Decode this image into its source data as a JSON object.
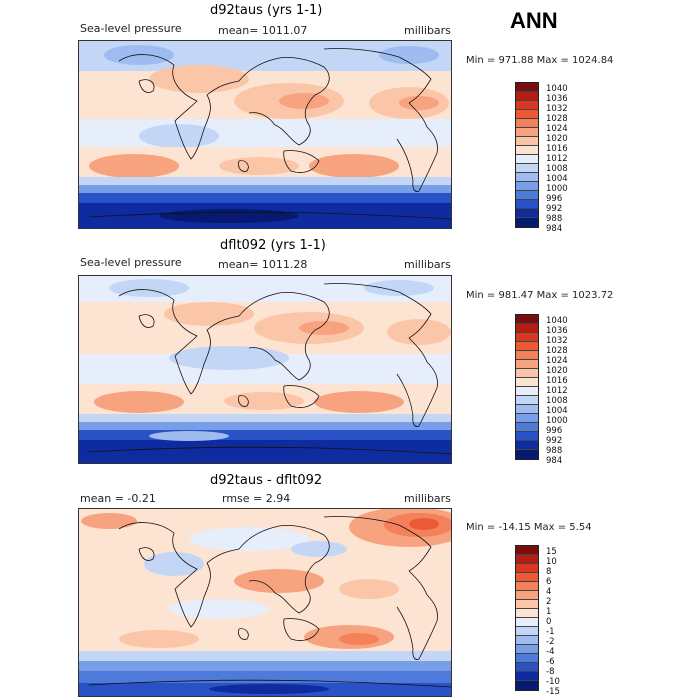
{
  "header": {
    "season": "ANN"
  },
  "panels": [
    {
      "title": "d92taus (yrs 1-1)",
      "variable": "Sea-level pressure",
      "stat": "mean= 1011.07",
      "units": "millibars",
      "minmax": "Min = 971.88 Max = 1024.84",
      "levels": [
        "1040",
        "1036",
        "1032",
        "1028",
        "1024",
        "1020",
        "1016",
        "1012",
        "1008",
        "1004",
        "1000",
        "996",
        "992",
        "988",
        "984"
      ],
      "colors": [
        "#7a0e0e",
        "#b51c14",
        "#d9371f",
        "#ec5a35",
        "#f4815a",
        "#f8a37f",
        "#fbc6a8",
        "#fde4d2",
        "#e6eefc",
        "#c4d6f6",
        "#9fbcf1",
        "#789ee8",
        "#4e7ad9",
        "#2a52c7",
        "#0e2c9f",
        "#061a72"
      ]
    },
    {
      "title": "dflt092 (yrs 1-1)",
      "variable": "Sea-level pressure",
      "stat": "mean= 1011.28",
      "units": "millibars",
      "minmax": "Min = 981.47 Max = 1023.72",
      "levels": [
        "1040",
        "1036",
        "1032",
        "1028",
        "1024",
        "1020",
        "1016",
        "1012",
        "1008",
        "1004",
        "1000",
        "996",
        "992",
        "988",
        "984"
      ],
      "colors": [
        "#7a0e0e",
        "#b51c14",
        "#d9371f",
        "#ec5a35",
        "#f4815a",
        "#f8a37f",
        "#fbc6a8",
        "#fde4d2",
        "#e6eefc",
        "#c4d6f6",
        "#9fbcf1",
        "#789ee8",
        "#4e7ad9",
        "#2a52c7",
        "#0e2c9f",
        "#061a72"
      ]
    },
    {
      "title": "d92taus - dflt092",
      "stat_mean": "mean =   -0.21",
      "stat_rmse": "rmse =    2.94",
      "units": "millibars",
      "minmax": "Min = -14.15 Max =    5.54",
      "levels": [
        "15",
        "10",
        "8",
        "6",
        "4",
        "2",
        "1",
        "0",
        "-1",
        "-2",
        "-4",
        "-6",
        "-8",
        "-10",
        "-15"
      ],
      "colors": [
        "#7a0e0e",
        "#b51c14",
        "#d9371f",
        "#ec5a35",
        "#f4815a",
        "#f8a37f",
        "#fbc6a8",
        "#fde4d2",
        "#e6eefc",
        "#c4d6f6",
        "#9fbcf1",
        "#789ee8",
        "#4e7ad9",
        "#2a52c7",
        "#0e2c9f",
        "#061a72"
      ]
    }
  ],
  "chart_data": [
    {
      "type": "heatmap",
      "title": "d92taus (yrs 1-1)",
      "variable": "Sea-level pressure",
      "units": "millibars",
      "mean": 1011.07,
      "min": 971.88,
      "max": 1024.84,
      "contour_levels": [
        984,
        988,
        992,
        996,
        1000,
        1004,
        1008,
        1012,
        1016,
        1020,
        1024,
        1028,
        1032,
        1036,
        1040
      ]
    },
    {
      "type": "heatmap",
      "title": "dflt092 (yrs 1-1)",
      "variable": "Sea-level pressure",
      "units": "millibars",
      "mean": 1011.28,
      "min": 981.47,
      "max": 1023.72,
      "contour_levels": [
        984,
        988,
        992,
        996,
        1000,
        1004,
        1008,
        1012,
        1016,
        1020,
        1024,
        1028,
        1032,
        1036,
        1040
      ]
    },
    {
      "type": "heatmap",
      "title": "d92taus - dflt092",
      "units": "millibars",
      "mean": -0.21,
      "rmse": 2.94,
      "min": -14.15,
      "max": 5.54,
      "contour_levels": [
        -15,
        -10,
        -8,
        -6,
        -4,
        -2,
        -1,
        0,
        1,
        2,
        4,
        6,
        8,
        10,
        15
      ]
    }
  ]
}
